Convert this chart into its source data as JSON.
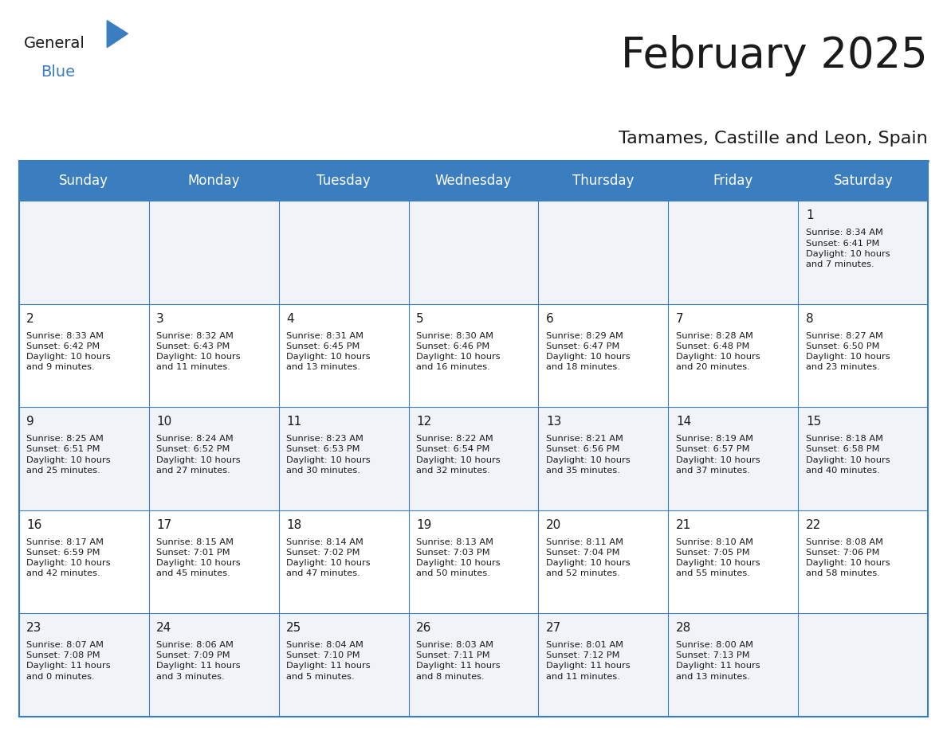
{
  "title": "February 2025",
  "subtitle": "Tamames, Castille and Leon, Spain",
  "header_bg": "#3a7ebf",
  "header_text": "#ffffff",
  "odd_row_bg": "#f0f4f8",
  "even_row_bg": "#ffffff",
  "border_color": "#3a7ebf",
  "day_headers": [
    "Sunday",
    "Monday",
    "Tuesday",
    "Wednesday",
    "Thursday",
    "Friday",
    "Saturday"
  ],
  "days": [
    {
      "day": 1,
      "col": 6,
      "row": 0,
      "sunrise": "8:34 AM",
      "sunset": "6:41 PM",
      "daylight": "10 hours and 7 minutes."
    },
    {
      "day": 2,
      "col": 0,
      "row": 1,
      "sunrise": "8:33 AM",
      "sunset": "6:42 PM",
      "daylight": "10 hours and 9 minutes."
    },
    {
      "day": 3,
      "col": 1,
      "row": 1,
      "sunrise": "8:32 AM",
      "sunset": "6:43 PM",
      "daylight": "10 hours and 11 minutes."
    },
    {
      "day": 4,
      "col": 2,
      "row": 1,
      "sunrise": "8:31 AM",
      "sunset": "6:45 PM",
      "daylight": "10 hours and 13 minutes."
    },
    {
      "day": 5,
      "col": 3,
      "row": 1,
      "sunrise": "8:30 AM",
      "sunset": "6:46 PM",
      "daylight": "10 hours and 16 minutes."
    },
    {
      "day": 6,
      "col": 4,
      "row": 1,
      "sunrise": "8:29 AM",
      "sunset": "6:47 PM",
      "daylight": "10 hours and 18 minutes."
    },
    {
      "day": 7,
      "col": 5,
      "row": 1,
      "sunrise": "8:28 AM",
      "sunset": "6:48 PM",
      "daylight": "10 hours and 20 minutes."
    },
    {
      "day": 8,
      "col": 6,
      "row": 1,
      "sunrise": "8:27 AM",
      "sunset": "6:50 PM",
      "daylight": "10 hours and 23 minutes."
    },
    {
      "day": 9,
      "col": 0,
      "row": 2,
      "sunrise": "8:25 AM",
      "sunset": "6:51 PM",
      "daylight": "10 hours and 25 minutes."
    },
    {
      "day": 10,
      "col": 1,
      "row": 2,
      "sunrise": "8:24 AM",
      "sunset": "6:52 PM",
      "daylight": "10 hours and 27 minutes."
    },
    {
      "day": 11,
      "col": 2,
      "row": 2,
      "sunrise": "8:23 AM",
      "sunset": "6:53 PM",
      "daylight": "10 hours and 30 minutes."
    },
    {
      "day": 12,
      "col": 3,
      "row": 2,
      "sunrise": "8:22 AM",
      "sunset": "6:54 PM",
      "daylight": "10 hours and 32 minutes."
    },
    {
      "day": 13,
      "col": 4,
      "row": 2,
      "sunrise": "8:21 AM",
      "sunset": "6:56 PM",
      "daylight": "10 hours and 35 minutes."
    },
    {
      "day": 14,
      "col": 5,
      "row": 2,
      "sunrise": "8:19 AM",
      "sunset": "6:57 PM",
      "daylight": "10 hours and 37 minutes."
    },
    {
      "day": 15,
      "col": 6,
      "row": 2,
      "sunrise": "8:18 AM",
      "sunset": "6:58 PM",
      "daylight": "10 hours and 40 minutes."
    },
    {
      "day": 16,
      "col": 0,
      "row": 3,
      "sunrise": "8:17 AM",
      "sunset": "6:59 PM",
      "daylight": "10 hours and 42 minutes."
    },
    {
      "day": 17,
      "col": 1,
      "row": 3,
      "sunrise": "8:15 AM",
      "sunset": "7:01 PM",
      "daylight": "10 hours and 45 minutes."
    },
    {
      "day": 18,
      "col": 2,
      "row": 3,
      "sunrise": "8:14 AM",
      "sunset": "7:02 PM",
      "daylight": "10 hours and 47 minutes."
    },
    {
      "day": 19,
      "col": 3,
      "row": 3,
      "sunrise": "8:13 AM",
      "sunset": "7:03 PM",
      "daylight": "10 hours and 50 minutes."
    },
    {
      "day": 20,
      "col": 4,
      "row": 3,
      "sunrise": "8:11 AM",
      "sunset": "7:04 PM",
      "daylight": "10 hours and 52 minutes."
    },
    {
      "day": 21,
      "col": 5,
      "row": 3,
      "sunrise": "8:10 AM",
      "sunset": "7:05 PM",
      "daylight": "10 hours and 55 minutes."
    },
    {
      "day": 22,
      "col": 6,
      "row": 3,
      "sunrise": "8:08 AM",
      "sunset": "7:06 PM",
      "daylight": "10 hours and 58 minutes."
    },
    {
      "day": 23,
      "col": 0,
      "row": 4,
      "sunrise": "8:07 AM",
      "sunset": "7:08 PM",
      "daylight": "11 hours and 0 minutes."
    },
    {
      "day": 24,
      "col": 1,
      "row": 4,
      "sunrise": "8:06 AM",
      "sunset": "7:09 PM",
      "daylight": "11 hours and 3 minutes."
    },
    {
      "day": 25,
      "col": 2,
      "row": 4,
      "sunrise": "8:04 AM",
      "sunset": "7:10 PM",
      "daylight": "11 hours and 5 minutes."
    },
    {
      "day": 26,
      "col": 3,
      "row": 4,
      "sunrise": "8:03 AM",
      "sunset": "7:11 PM",
      "daylight": "11 hours and 8 minutes."
    },
    {
      "day": 27,
      "col": 4,
      "row": 4,
      "sunrise": "8:01 AM",
      "sunset": "7:12 PM",
      "daylight": "11 hours and 11 minutes."
    },
    {
      "day": 28,
      "col": 5,
      "row": 4,
      "sunrise": "8:00 AM",
      "sunset": "7:13 PM",
      "daylight": "11 hours and 13 minutes."
    }
  ]
}
